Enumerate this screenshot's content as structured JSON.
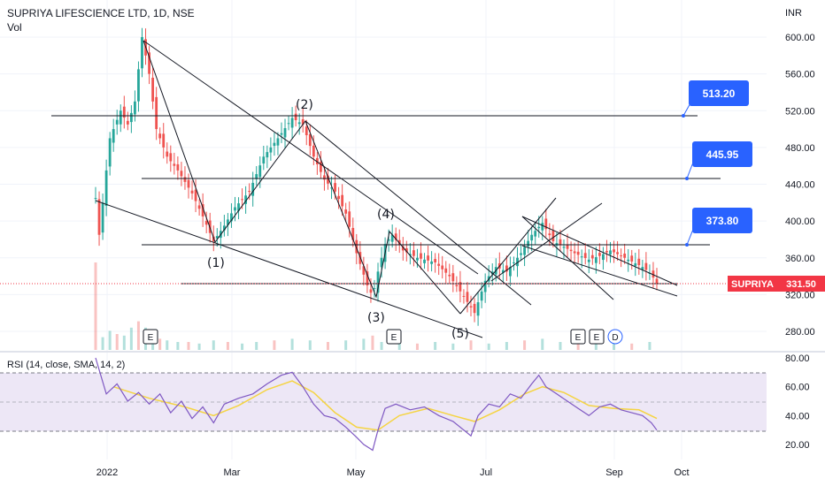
{
  "header": {
    "symbol_line": "SUPRIYA LIFESCIENCE LTD, 1D, NSE",
    "volume_label": "Vol",
    "currency": "INR"
  },
  "price_axis": {
    "ticks": [
      "600.00",
      "560.00",
      "520.00",
      "480.00",
      "440.00",
      "400.00",
      "360.00",
      "320.00",
      "280.00"
    ]
  },
  "time_axis": {
    "ticks": [
      "2022",
      "Mar",
      "May",
      "Jul",
      "Sep",
      "Oct"
    ]
  },
  "callouts": [
    "513.20",
    "445.95",
    "373.80"
  ],
  "last_price": {
    "symbol": "SUPRIYA",
    "value": "331.50"
  },
  "waves": [
    "(1)",
    "(2)",
    "(3)",
    "(4)",
    "(5)"
  ],
  "events": [
    "E",
    "E",
    "E",
    "E",
    "D"
  ],
  "rsi": {
    "title": "RSI (14, close, SMA, 14, 2)",
    "ticks": [
      "80.00",
      "60.00",
      "40.00",
      "20.00"
    ]
  },
  "colors": {
    "up": "#26a69a",
    "down": "#ef5350",
    "rsi_line": "#7e57c2",
    "rsi_ma": "#f5d442",
    "rsi_band": "#ede7f6",
    "callout": "#2962ff",
    "tag": "#f23645"
  },
  "chart_data": {
    "type": "candlestick",
    "points": [
      {
        "t": 0,
        "y": 425
      },
      {
        "t": 2,
        "y": 385
      },
      {
        "t": 8,
        "y": 490
      },
      {
        "t": 14,
        "y": 520
      },
      {
        "t": 18,
        "y": 505
      },
      {
        "t": 22,
        "y": 530
      },
      {
        "t": 26,
        "y": 600
      },
      {
        "t": 30,
        "y": 560
      },
      {
        "t": 34,
        "y": 500
      },
      {
        "t": 40,
        "y": 470
      },
      {
        "t": 46,
        "y": 455
      },
      {
        "t": 54,
        "y": 430
      },
      {
        "t": 60,
        "y": 405
      },
      {
        "t": 66,
        "y": 378
      },
      {
        "t": 72,
        "y": 395
      },
      {
        "t": 78,
        "y": 415
      },
      {
        "t": 86,
        "y": 432
      },
      {
        "t": 94,
        "y": 470
      },
      {
        "t": 102,
        "y": 490
      },
      {
        "t": 110,
        "y": 512
      },
      {
        "t": 116,
        "y": 505
      },
      {
        "t": 122,
        "y": 470
      },
      {
        "t": 128,
        "y": 445
      },
      {
        "t": 134,
        "y": 432
      },
      {
        "t": 140,
        "y": 408
      },
      {
        "t": 146,
        "y": 365
      },
      {
        "t": 152,
        "y": 330
      },
      {
        "t": 155,
        "y": 318
      },
      {
        "t": 158,
        "y": 345
      },
      {
        "t": 162,
        "y": 375
      },
      {
        "t": 166,
        "y": 385
      },
      {
        "t": 172,
        "y": 368
      },
      {
        "t": 180,
        "y": 360
      },
      {
        "t": 190,
        "y": 355
      },
      {
        "t": 198,
        "y": 340
      },
      {
        "t": 206,
        "y": 318
      },
      {
        "t": 212,
        "y": 300
      },
      {
        "t": 218,
        "y": 335
      },
      {
        "t": 224,
        "y": 350
      },
      {
        "t": 230,
        "y": 345
      },
      {
        "t": 238,
        "y": 365
      },
      {
        "t": 244,
        "y": 385
      },
      {
        "t": 250,
        "y": 398
      },
      {
        "t": 256,
        "y": 378
      },
      {
        "t": 262,
        "y": 372
      },
      {
        "t": 268,
        "y": 365
      },
      {
        "t": 276,
        "y": 358
      },
      {
        "t": 282,
        "y": 362
      },
      {
        "t": 288,
        "y": 368
      },
      {
        "t": 294,
        "y": 362
      },
      {
        "t": 300,
        "y": 356
      },
      {
        "t": 306,
        "y": 350
      },
      {
        "t": 311,
        "y": 342
      },
      {
        "t": 314,
        "y": 331.5
      }
    ],
    "volume": [
      {
        "t": 0,
        "v": 55
      },
      {
        "t": 4,
        "v": 8
      },
      {
        "t": 8,
        "v": 12
      },
      {
        "t": 12,
        "v": 10
      },
      {
        "t": 16,
        "v": 9
      },
      {
        "t": 20,
        "v": 14
      },
      {
        "t": 24,
        "v": 18
      },
      {
        "t": 28,
        "v": 14
      },
      {
        "t": 32,
        "v": 9
      },
      {
        "t": 36,
        "v": 7
      },
      {
        "t": 40,
        "v": 6
      },
      {
        "t": 46,
        "v": 5
      },
      {
        "t": 52,
        "v": 5
      },
      {
        "t": 58,
        "v": 4
      },
      {
        "t": 66,
        "v": 6
      },
      {
        "t": 74,
        "v": 5
      },
      {
        "t": 82,
        "v": 4
      },
      {
        "t": 90,
        "v": 5
      },
      {
        "t": 100,
        "v": 6
      },
      {
        "t": 110,
        "v": 7
      },
      {
        "t": 120,
        "v": 6
      },
      {
        "t": 130,
        "v": 5
      },
      {
        "t": 140,
        "v": 6
      },
      {
        "t": 150,
        "v": 7
      },
      {
        "t": 155,
        "v": 9
      },
      {
        "t": 160,
        "v": 5
      },
      {
        "t": 170,
        "v": 4
      },
      {
        "t": 180,
        "v": 4
      },
      {
        "t": 190,
        "v": 5
      },
      {
        "t": 200,
        "v": 4
      },
      {
        "t": 210,
        "v": 6
      },
      {
        "t": 220,
        "v": 4
      },
      {
        "t": 230,
        "v": 5
      },
      {
        "t": 240,
        "v": 6
      },
      {
        "t": 250,
        "v": 7
      },
      {
        "t": 260,
        "v": 5
      },
      {
        "t": 270,
        "v": 4
      },
      {
        "t": 280,
        "v": 4
      },
      {
        "t": 290,
        "v": 4
      },
      {
        "t": 300,
        "v": 4
      },
      {
        "t": 310,
        "v": 5
      }
    ],
    "rsi": [
      {
        "t": 0,
        "v": 80
      },
      {
        "t": 6,
        "v": 55
      },
      {
        "t": 12,
        "v": 62
      },
      {
        "t": 18,
        "v": 50
      },
      {
        "t": 24,
        "v": 56
      },
      {
        "t": 30,
        "v": 48
      },
      {
        "t": 36,
        "v": 55
      },
      {
        "t": 42,
        "v": 42
      },
      {
        "t": 48,
        "v": 50
      },
      {
        "t": 54,
        "v": 38
      },
      {
        "t": 60,
        "v": 46
      },
      {
        "t": 66,
        "v": 35
      },
      {
        "t": 72,
        "v": 48
      },
      {
        "t": 80,
        "v": 52
      },
      {
        "t": 88,
        "v": 55
      },
      {
        "t": 96,
        "v": 62
      },
      {
        "t": 104,
        "v": 68
      },
      {
        "t": 110,
        "v": 70
      },
      {
        "t": 116,
        "v": 60
      },
      {
        "t": 122,
        "v": 48
      },
      {
        "t": 128,
        "v": 40
      },
      {
        "t": 134,
        "v": 38
      },
      {
        "t": 140,
        "v": 32
      },
      {
        "t": 146,
        "v": 25
      },
      {
        "t": 150,
        "v": 20
      },
      {
        "t": 155,
        "v": 16
      },
      {
        "t": 158,
        "v": 30
      },
      {
        "t": 162,
        "v": 45
      },
      {
        "t": 168,
        "v": 48
      },
      {
        "t": 176,
        "v": 44
      },
      {
        "t": 184,
        "v": 46
      },
      {
        "t": 192,
        "v": 40
      },
      {
        "t": 200,
        "v": 36
      },
      {
        "t": 206,
        "v": 30
      },
      {
        "t": 210,
        "v": 26
      },
      {
        "t": 214,
        "v": 40
      },
      {
        "t": 220,
        "v": 48
      },
      {
        "t": 226,
        "v": 46
      },
      {
        "t": 232,
        "v": 55
      },
      {
        "t": 238,
        "v": 52
      },
      {
        "t": 244,
        "v": 62
      },
      {
        "t": 248,
        "v": 68
      },
      {
        "t": 252,
        "v": 60
      },
      {
        "t": 258,
        "v": 55
      },
      {
        "t": 264,
        "v": 50
      },
      {
        "t": 270,
        "v": 45
      },
      {
        "t": 276,
        "v": 40
      },
      {
        "t": 282,
        "v": 46
      },
      {
        "t": 288,
        "v": 48
      },
      {
        "t": 294,
        "v": 44
      },
      {
        "t": 300,
        "v": 42
      },
      {
        "t": 306,
        "v": 40
      },
      {
        "t": 311,
        "v": 35
      },
      {
        "t": 314,
        "v": 30
      }
    ],
    "rsi_ma": [
      {
        "t": 10,
        "v": 60
      },
      {
        "t": 30,
        "v": 52
      },
      {
        "t": 50,
        "v": 46
      },
      {
        "t": 66,
        "v": 40
      },
      {
        "t": 80,
        "v": 47
      },
      {
        "t": 96,
        "v": 58
      },
      {
        "t": 110,
        "v": 64
      },
      {
        "t": 122,
        "v": 56
      },
      {
        "t": 134,
        "v": 42
      },
      {
        "t": 146,
        "v": 32
      },
      {
        "t": 158,
        "v": 30
      },
      {
        "t": 170,
        "v": 40
      },
      {
        "t": 186,
        "v": 45
      },
      {
        "t": 200,
        "v": 40
      },
      {
        "t": 212,
        "v": 36
      },
      {
        "t": 226,
        "v": 44
      },
      {
        "t": 240,
        "v": 55
      },
      {
        "t": 250,
        "v": 60
      },
      {
        "t": 262,
        "v": 56
      },
      {
        "t": 276,
        "v": 47
      },
      {
        "t": 290,
        "v": 45
      },
      {
        "t": 304,
        "v": 44
      },
      {
        "t": 314,
        "v": 38
      }
    ],
    "levels": [
      513.2,
      445.95,
      373.8,
      331.5
    ]
  }
}
